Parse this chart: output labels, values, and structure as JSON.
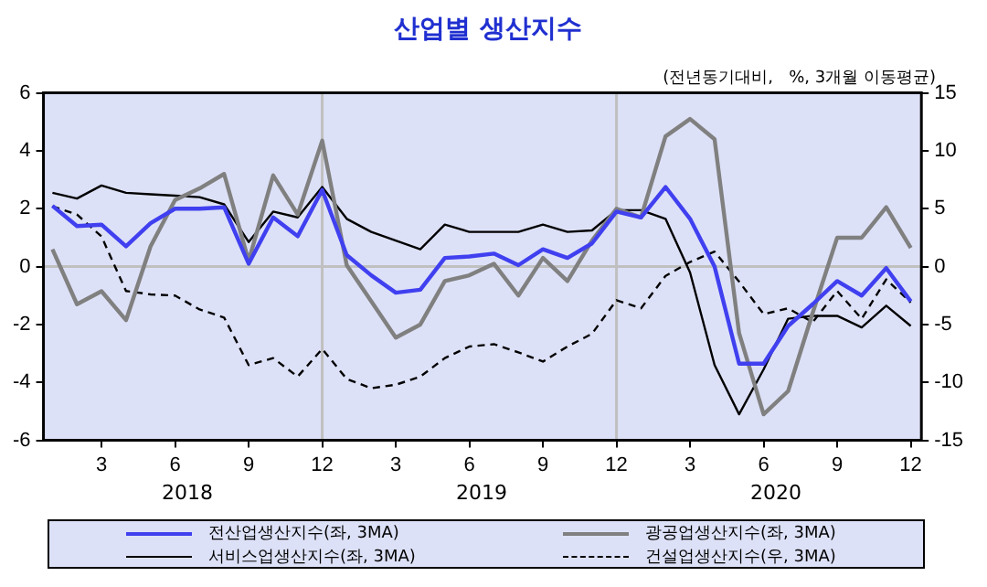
{
  "chart_data": {
    "type": "line",
    "title": "산업별 생산지수",
    "annotations": [
      "(전년동기대비,   %, 3개월 이동평균)",
      "2018",
      "2019",
      "2020"
    ],
    "x": [
      "2018-01",
      "2018-02",
      "2018-03",
      "2018-04",
      "2018-05",
      "2018-06",
      "2018-07",
      "2018-08",
      "2018-09",
      "2018-10",
      "2018-11",
      "2018-12",
      "2019-01",
      "2019-02",
      "2019-03",
      "2019-04",
      "2019-05",
      "2019-06",
      "2019-07",
      "2019-08",
      "2019-09",
      "2019-10",
      "2019-11",
      "2019-12",
      "2020-01",
      "2020-02",
      "2020-03",
      "2020-04",
      "2020-05",
      "2020-06",
      "2020-07",
      "2020-08",
      "2020-09",
      "2020-10",
      "2020-11",
      "2020-12"
    ],
    "series": [
      {
        "name": "전산업생산지수(좌,   3MA)",
        "color": "#4040f0",
        "values": [
          2.1,
          1.4,
          1.45,
          0.7,
          1.5,
          2.0,
          2.0,
          2.05,
          0.1,
          1.7,
          1.05,
          2.65,
          0.4,
          -0.3,
          -0.9,
          -0.8,
          0.3,
          0.35,
          0.45,
          0.05,
          0.6,
          0.3,
          0.8,
          1.9,
          1.7,
          2.75,
          1.65,
          0,
          -3.35,
          -3.35,
          -2.05,
          -1.3,
          -0.5,
          -1.0,
          -0.05,
          -1.2
        ]
      },
      {
        "name": "광공업생산지수(좌,   3MA)",
        "color": "#808080",
        "values": [
          0.6,
          -1.3,
          -0.85,
          -1.85,
          0.7,
          2.3,
          2.7,
          3.2,
          0.2,
          3.15,
          1.8,
          4.35,
          0.05,
          -1.2,
          -2.45,
          -2.0,
          -0.5,
          -0.3,
          0.1,
          -1.0,
          0.3,
          -0.5,
          0.9,
          2.0,
          1.7,
          4.5,
          5.1,
          4.4,
          -2.3,
          -5.1,
          -4.3,
          -1.6,
          1.0,
          1.0,
          2.05,
          0.65
        ]
      },
      {
        "name": "서비스업생산지수(좌,   3MA)",
        "color": "#000000",
        "values": [
          2.55,
          2.35,
          2.8,
          2.55,
          2.5,
          2.45,
          2.4,
          2.15,
          0.85,
          1.9,
          1.7,
          2.75,
          1.65,
          1.2,
          0.9,
          0.6,
          1.45,
          1.2,
          1.2,
          1.2,
          1.45,
          1.2,
          1.25,
          1.95,
          1.95,
          1.65,
          -0.2,
          -3.4,
          -5.1,
          -3.55,
          -1.8,
          -1.7,
          -1.7,
          -2.1,
          -1.35,
          -2.05
        ]
      },
      {
        "name": "건설업생산지수(우,   3MA)",
        "color": "#000000",
        "axis": "y2",
        "line_style": "dashed",
        "values": [
          5.2,
          4.5,
          2.6,
          -2.1,
          -2.4,
          -2.5,
          -3.7,
          -4.4,
          -8.5,
          -7.9,
          -9.5,
          -7.1,
          -9.7,
          -10.5,
          -10.2,
          -9.5,
          -7.9,
          -6.9,
          -6.7,
          -7.4,
          -8.2,
          -6.9,
          -5.8,
          -2.9,
          -3.6,
          -0.8,
          0.4,
          1.3,
          -1.3,
          -4.1,
          -3.6,
          -4.8,
          -2.1,
          -4.5,
          -1.1,
          -3.1
        ]
      }
    ],
    "xlim": [
      "2017-12-20",
      "2020-12-14"
    ],
    "xticks": [
      {
        "value": "2018-03",
        "label": "3"
      },
      {
        "value": "2018-06",
        "label": "6"
      },
      {
        "value": "2018-09",
        "label": "9"
      },
      {
        "value": "2018-12",
        "label": "12"
      },
      {
        "value": "2019-03",
        "label": "3"
      },
      {
        "value": "2019-06",
        "label": "6"
      },
      {
        "value": "2019-09",
        "label": "9"
      },
      {
        "value": "2019-12",
        "label": "12"
      },
      {
        "value": "2020-03",
        "label": "3"
      },
      {
        "value": "2020-06",
        "label": "6"
      },
      {
        "value": "2020-09",
        "label": "9"
      },
      {
        "value": "2020-12",
        "label": "12"
      }
    ],
    "ylim": [
      -6,
      6
    ],
    "yticks": [
      -6,
      -4,
      -2,
      0,
      2,
      4,
      6
    ],
    "y2lim": [
      -15,
      15
    ],
    "y2ticks": [
      -15,
      -10,
      -5,
      0,
      5,
      10,
      15
    ],
    "ref_lines": [
      {
        "axis": "y",
        "value": 0,
        "color": "#c0c0c0"
      },
      {
        "axis": "x",
        "value": "2018-12",
        "color": "#c0c0c0"
      },
      {
        "axis": "x",
        "value": "2019-12",
        "color": "#c0c0c0"
      }
    ],
    "legend": "bottom",
    "marker": "none",
    "line_style": "solid"
  }
}
